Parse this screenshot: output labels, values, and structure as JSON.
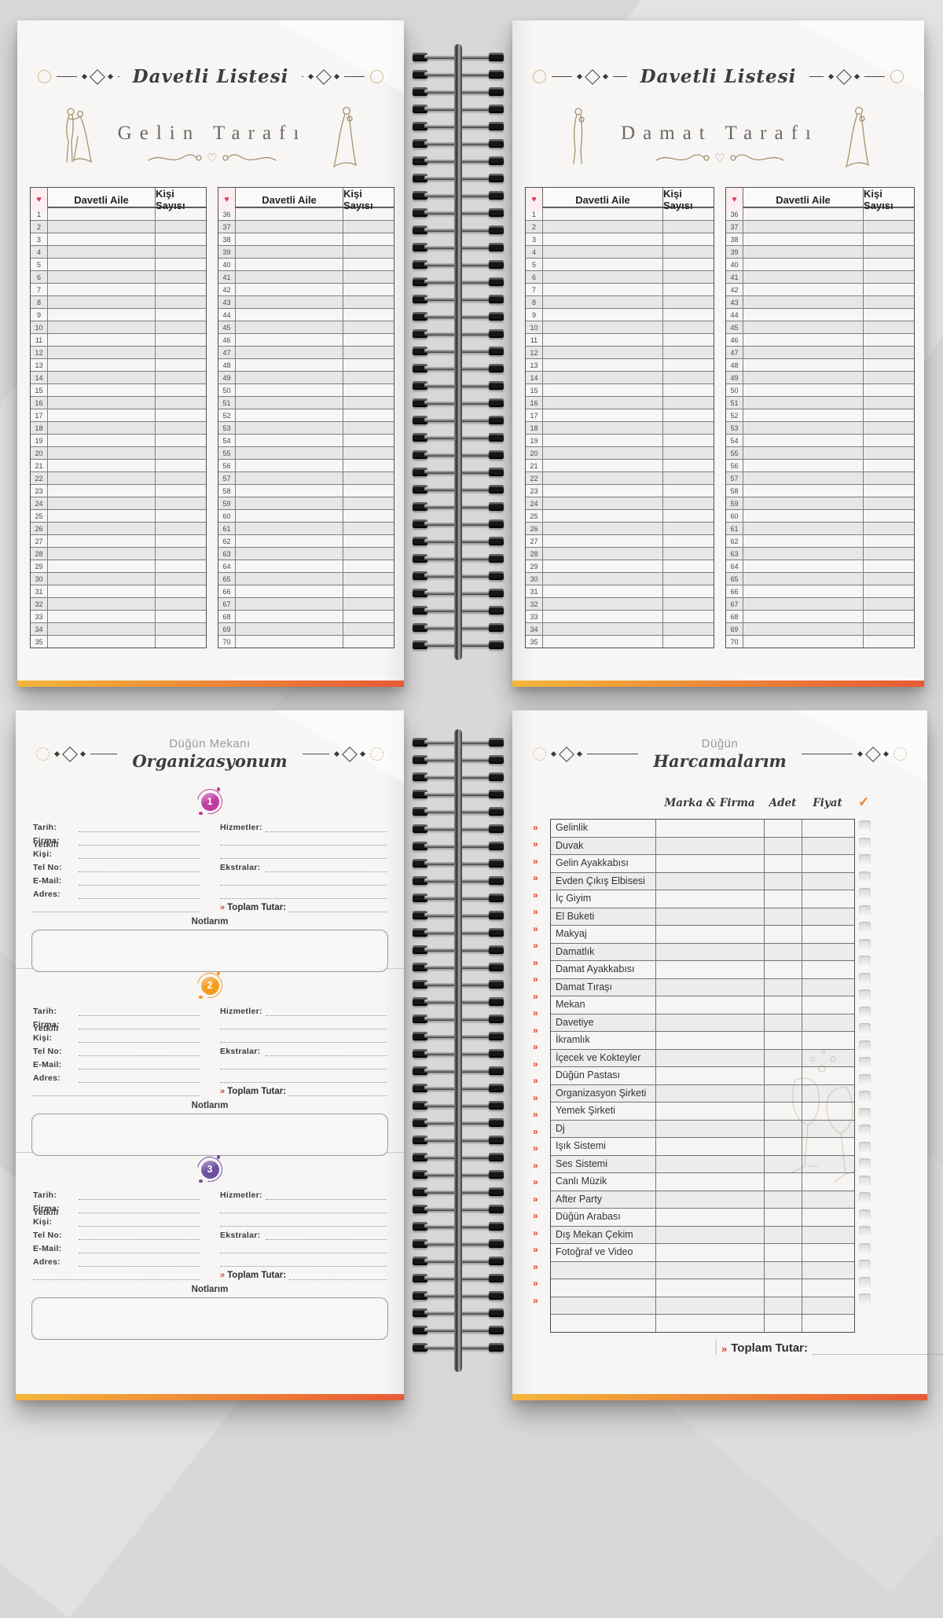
{
  "colors": {
    "accent_orange": "#ee7f2d",
    "edge_gradient_start": "#f4b63a",
    "edge_gradient_end": "#e85a36",
    "chevron_red": "#e8432e",
    "heart_pink": "#d6455e",
    "badge_1": "#bf3da0",
    "badge_2": "#f59b1f",
    "badge_3": "#6f4fa0"
  },
  "glyphs": {
    "heart": "♥",
    "chevron": "»",
    "check": "✓"
  },
  "guest_spread": {
    "pages": [
      {
        "title": "Davetli Listesi",
        "subtitle": "Gelin Tarafı",
        "columns": {
          "family": "Davetli Aile",
          "count": "Kişi Sayısı"
        },
        "tables": [
          {
            "start": 1,
            "end": 35
          },
          {
            "start": 36,
            "end": 70
          }
        ]
      },
      {
        "title": "Davetli Listesi",
        "subtitle": "Damat Tarafı",
        "columns": {
          "family": "Davetli Aile",
          "count": "Kişi Sayısı"
        },
        "tables": [
          {
            "start": 1,
            "end": 35
          },
          {
            "start": 36,
            "end": 70
          }
        ]
      }
    ]
  },
  "venue_page": {
    "title_line1": "Düğün Mekanı",
    "title_line2": "Organizasyonum",
    "info_labels": [
      "Tarih:",
      "Firma:",
      "Yetkili Kişi:",
      "Tel No:",
      "E-Mail:",
      "Adres:"
    ],
    "services_label": "Hizmetler:",
    "extras_label": "Ekstralar:",
    "total_label": "Toplam Tutar:",
    "notes_label": "Notlarım",
    "sections": [
      {
        "number": "1"
      },
      {
        "number": "2"
      },
      {
        "number": "3"
      }
    ]
  },
  "expense_page": {
    "title_line1": "Düğün",
    "title_line2": "Harcamalarım",
    "columns": [
      "Marka & Firma",
      "Adet",
      "Fiyat"
    ],
    "items": [
      "Gelinlik",
      "Duvak",
      "Gelin Ayakkabısı",
      "Evden Çıkış Elbisesi",
      "İç Giyim",
      "El Buketi",
      "Makyaj",
      "Damatlık",
      "Damat Ayakkabısı",
      "Damat Tıraşı",
      "Mekan",
      "Davetiye",
      "İkramlık",
      "İçecek ve Kokteyler",
      "Düğün Pastası",
      "Organizasyon Şirketi",
      "Yemek Şirketi",
      "Dj",
      "Işık Sistemi",
      "Ses Sistemi",
      "Canlı Müzik",
      "After Party",
      "Düğün Arabası",
      "Dış Mekan Çekim",
      "Fotoğraf ve Video"
    ],
    "empty_row_count": 4,
    "total_label": "Toplam Tutar:"
  }
}
